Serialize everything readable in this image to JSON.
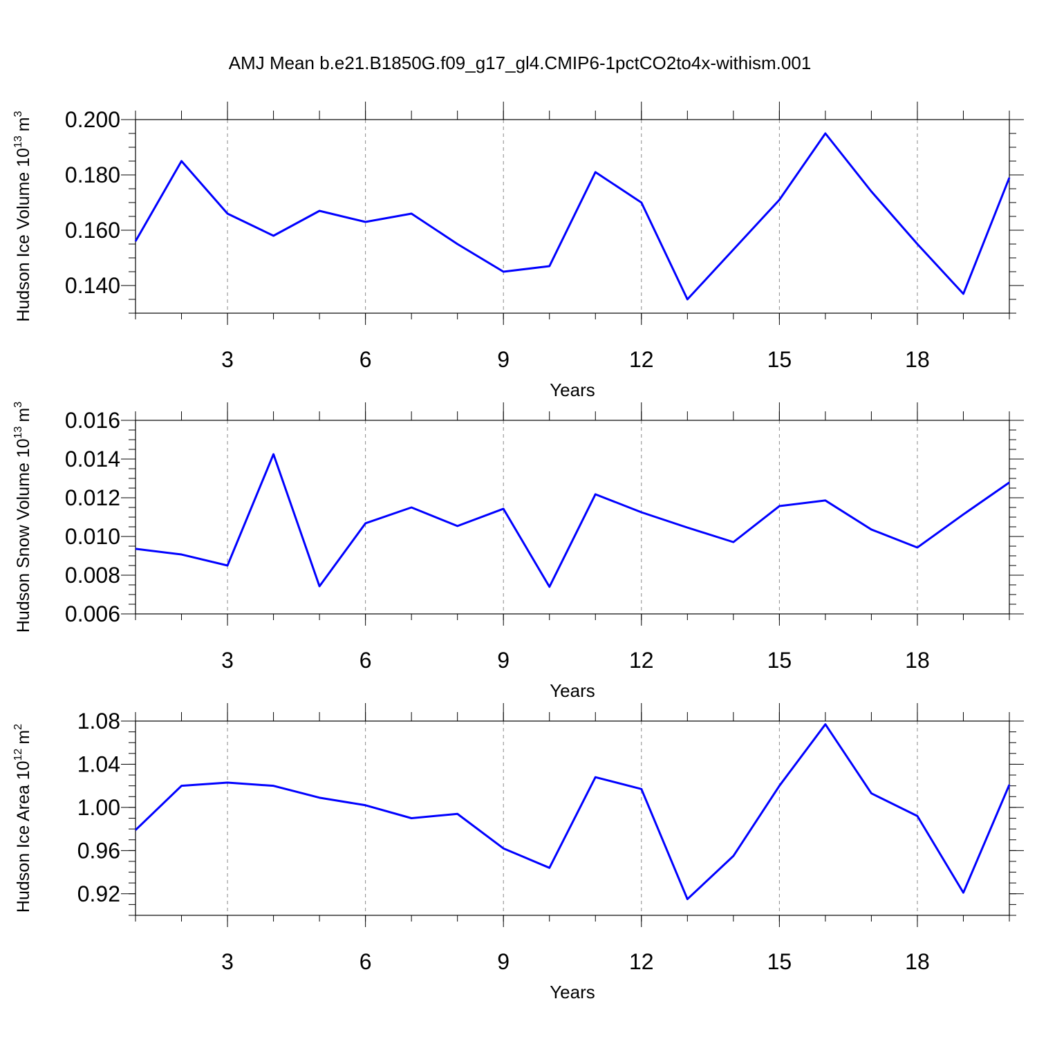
{
  "title": "AMJ Mean b.e21.B1850G.f09_g17_gl4.CMIP6-1pctCO2to4x-withism.001",
  "chart_data": [
    {
      "type": "line",
      "xlabel": "Years",
      "ylabel": "Hudson Ice Volume 10",
      "ylabel_exponent": "13",
      "ylabel_unit": "m",
      "ylabel_unit_exponent": "3",
      "x": [
        1,
        2,
        3,
        4,
        5,
        6,
        7,
        8,
        9,
        10,
        11,
        12,
        13,
        14,
        15,
        16,
        17,
        18,
        19,
        20
      ],
      "series": [
        {
          "color": "#0000ff",
          "values": [
            0.156,
            0.185,
            0.166,
            0.158,
            0.167,
            0.163,
            0.166,
            0.155,
            0.145,
            0.147,
            0.181,
            0.17,
            0.135,
            0.153,
            0.171,
            0.195,
            0.174,
            0.155,
            0.137,
            0.179
          ]
        }
      ],
      "xlim": [
        1,
        20
      ],
      "xticks": [
        3,
        6,
        9,
        12,
        15,
        18
      ],
      "ylim": [
        0.13,
        0.2
      ],
      "yticks": [
        {
          "value": 0.14,
          "label": "0.140"
        },
        {
          "value": 0.16,
          "label": "0.160"
        },
        {
          "value": 0.18,
          "label": "0.180"
        },
        {
          "value": 0.2,
          "label": "0.200"
        }
      ],
      "grid": "x"
    },
    {
      "type": "line",
      "xlabel": "Years",
      "ylabel": "Hudson Snow Volume 10",
      "ylabel_exponent": "13",
      "ylabel_unit": "m",
      "ylabel_unit_exponent": "3",
      "x": [
        1,
        2,
        3,
        4,
        5,
        6,
        7,
        8,
        9,
        10,
        11,
        12,
        13,
        14,
        15,
        16,
        17,
        18,
        19,
        20
      ],
      "series": [
        {
          "color": "#0000ff",
          "values": [
            0.00936,
            0.00907,
            0.0085,
            0.01425,
            0.00743,
            0.01068,
            0.0115,
            0.01054,
            0.01143,
            0.0074,
            0.01218,
            0.01125,
            0.01046,
            0.00971,
            0.01157,
            0.01186,
            0.01036,
            0.00943,
            0.01114,
            0.01279
          ]
        }
      ],
      "xlim": [
        1,
        20
      ],
      "xticks": [
        3,
        6,
        9,
        12,
        15,
        18
      ],
      "ylim": [
        0.006,
        0.016
      ],
      "yticks": [
        0.006,
        0.008,
        {
          "value": 0.01,
          "label": "0.010"
        },
        0.012,
        0.014,
        0.016
      ],
      "grid": "x"
    },
    {
      "type": "line",
      "xlabel": "Years",
      "ylabel": "Hudson Ice Area 10",
      "ylabel_exponent": "12",
      "ylabel_unit": "m",
      "ylabel_unit_exponent": "2",
      "x": [
        1,
        2,
        3,
        4,
        5,
        6,
        7,
        8,
        9,
        10,
        11,
        12,
        13,
        14,
        15,
        16,
        17,
        18,
        19,
        20
      ],
      "series": [
        {
          "color": "#0000ff",
          "values": [
            0.979,
            1.02,
            1.023,
            1.02,
            1.009,
            1.002,
            0.99,
            0.994,
            0.962,
            0.944,
            1.028,
            1.017,
            0.915,
            0.955,
            1.02,
            1.077,
            1.013,
            0.992,
            0.921,
            1.021
          ]
        }
      ],
      "xlim": [
        1,
        20
      ],
      "xticks": [
        3,
        6,
        9,
        12,
        15,
        18
      ],
      "ylim": [
        0.9,
        1.08
      ],
      "yticks": [
        0.92,
        0.96,
        {
          "value": 1,
          "label": "1.00"
        },
        1.04,
        1.08
      ],
      "grid": "x"
    }
  ]
}
